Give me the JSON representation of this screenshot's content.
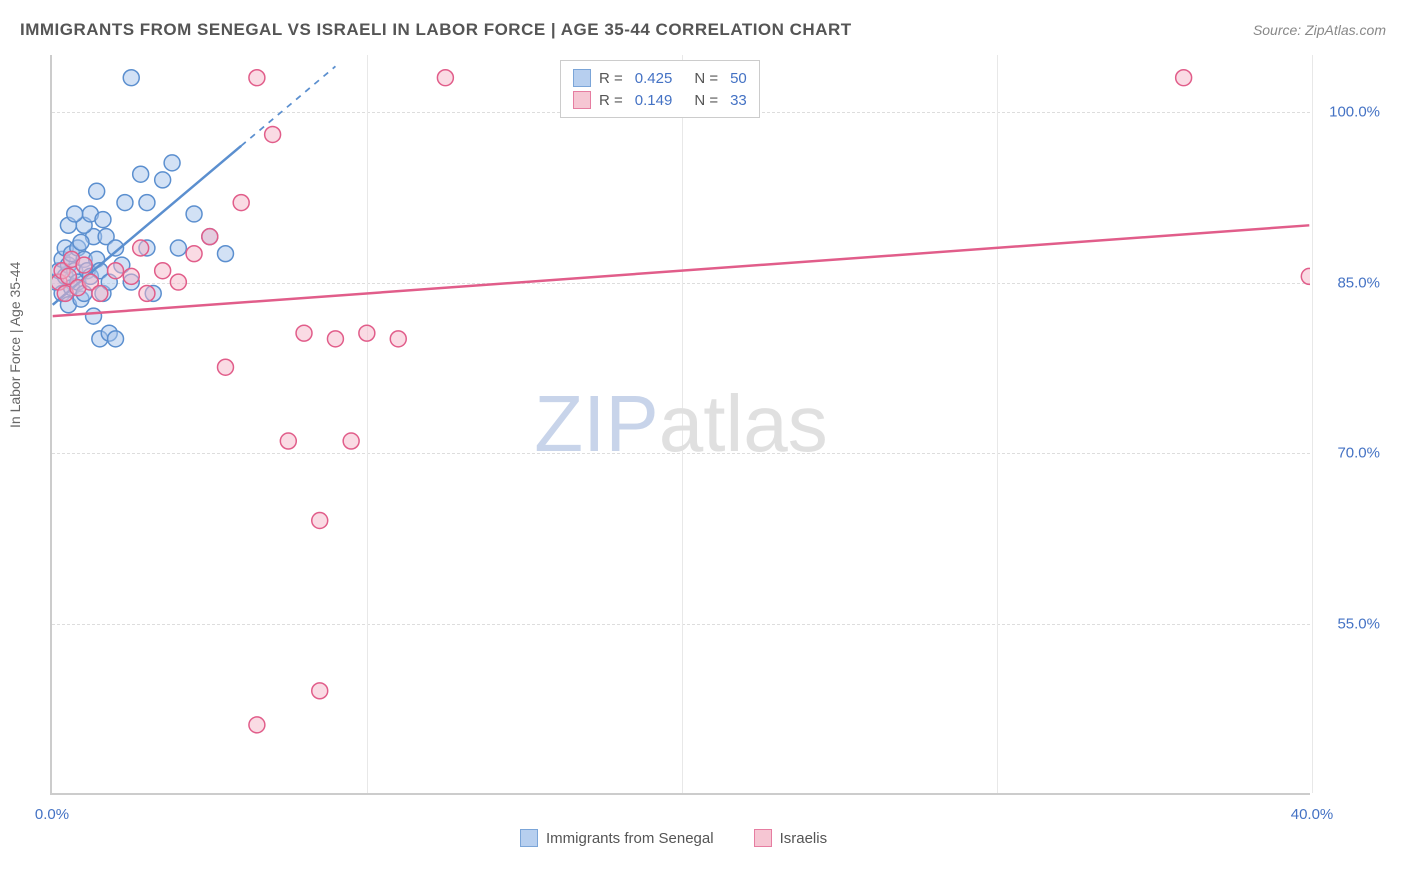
{
  "title": "IMMIGRANTS FROM SENEGAL VS ISRAELI IN LABOR FORCE | AGE 35-44 CORRELATION CHART",
  "source": "Source: ZipAtlas.com",
  "watermark": {
    "part1": "ZIP",
    "part2": "atlas"
  },
  "chart": {
    "type": "scatter",
    "y_axis_label": "In Labor Force | Age 35-44",
    "xlim": [
      0,
      40
    ],
    "ylim": [
      40,
      105
    ],
    "xticks": [
      {
        "v": 0,
        "label": "0.0%"
      },
      {
        "v": 20,
        "label": ""
      },
      {
        "v": 40,
        "label": "40.0%"
      }
    ],
    "xgrid": [
      10,
      20,
      30,
      40
    ],
    "yticks": [
      {
        "v": 55,
        "label": "55.0%"
      },
      {
        "v": 70,
        "label": "70.0%"
      },
      {
        "v": 85,
        "label": "85.0%"
      },
      {
        "v": 100,
        "label": "100.0%"
      }
    ],
    "background_color": "#ffffff",
    "grid_color": "#dddddd",
    "axis_color": "#cccccc",
    "tick_label_color": "#4472c4",
    "marker_radius": 8,
    "marker_stroke_width": 1.5,
    "series": [
      {
        "name": "Immigrants from Senegal",
        "color_fill": "#a6c4ec",
        "color_stroke": "#5b8fcf",
        "fill_opacity": 0.5,
        "R": "0.425",
        "N": "50",
        "trend": {
          "x1": 0,
          "y1": 83,
          "x2": 9,
          "y2": 104,
          "solid_until_x": 6,
          "width": 2.5
        },
        "points": [
          [
            0.1,
            85
          ],
          [
            0.2,
            86
          ],
          [
            0.3,
            84
          ],
          [
            0.3,
            87
          ],
          [
            0.4,
            85.5
          ],
          [
            0.4,
            88
          ],
          [
            0.5,
            83
          ],
          [
            0.5,
            86.5
          ],
          [
            0.6,
            84.5
          ],
          [
            0.6,
            87.5
          ],
          [
            0.7,
            86
          ],
          [
            0.8,
            85
          ],
          [
            0.8,
            88
          ],
          [
            0.9,
            83.5
          ],
          [
            1.0,
            84
          ],
          [
            1.0,
            87
          ],
          [
            1.1,
            86
          ],
          [
            1.2,
            85.5
          ],
          [
            1.3,
            89
          ],
          [
            1.3,
            82
          ],
          [
            1.4,
            87
          ],
          [
            1.5,
            80
          ],
          [
            1.5,
            86
          ],
          [
            1.6,
            84
          ],
          [
            1.7,
            89
          ],
          [
            1.8,
            80.5
          ],
          [
            1.8,
            85
          ],
          [
            2.0,
            88
          ],
          [
            2.0,
            80
          ],
          [
            2.2,
            86.5
          ],
          [
            2.5,
            103
          ],
          [
            2.5,
            85
          ],
          [
            3.0,
            88
          ],
          [
            3.0,
            92
          ],
          [
            3.2,
            84
          ],
          [
            3.5,
            94
          ],
          [
            4.0,
            88
          ],
          [
            4.5,
            91
          ],
          [
            5.0,
            89
          ],
          [
            5.5,
            87.5
          ],
          [
            1.0,
            90
          ],
          [
            1.2,
            91
          ],
          [
            1.4,
            93
          ],
          [
            0.5,
            90
          ],
          [
            0.7,
            91
          ],
          [
            2.8,
            94.5
          ],
          [
            3.8,
            95.5
          ],
          [
            0.9,
            88.5
          ],
          [
            1.6,
            90.5
          ],
          [
            2.3,
            92
          ]
        ]
      },
      {
        "name": "Israelis",
        "color_fill": "#f5b8c9",
        "color_stroke": "#e15d8a",
        "fill_opacity": 0.5,
        "R": "0.149",
        "N": "33",
        "trend": {
          "x1": 0,
          "y1": 82,
          "x2": 40,
          "y2": 90,
          "solid_until_x": 40,
          "width": 2.5
        },
        "points": [
          [
            0.2,
            85
          ],
          [
            0.3,
            86
          ],
          [
            0.4,
            84
          ],
          [
            0.5,
            85.5
          ],
          [
            0.6,
            87
          ],
          [
            0.8,
            84.5
          ],
          [
            1.0,
            86.5
          ],
          [
            1.2,
            85
          ],
          [
            1.5,
            84
          ],
          [
            2.0,
            86
          ],
          [
            2.5,
            85.5
          ],
          [
            3.0,
            84
          ],
          [
            3.5,
            86
          ],
          [
            4.0,
            85
          ],
          [
            5.0,
            89
          ],
          [
            5.5,
            77.5
          ],
          [
            6.0,
            92
          ],
          [
            6.5,
            103
          ],
          [
            7.0,
            98
          ],
          [
            7.5,
            71
          ],
          [
            8.0,
            80.5
          ],
          [
            8.5,
            64
          ],
          [
            9.0,
            80
          ],
          [
            9.5,
            71
          ],
          [
            10,
            80.5
          ],
          [
            11,
            80
          ],
          [
            12.5,
            103
          ],
          [
            6.5,
            46
          ],
          [
            8.5,
            49
          ],
          [
            36,
            103
          ],
          [
            40,
            85.5
          ],
          [
            4.5,
            87.5
          ],
          [
            2.8,
            88
          ]
        ]
      }
    ],
    "legend_bottom": [
      {
        "label": "Immigrants from Senegal",
        "fill": "#a6c4ec",
        "stroke": "#5b8fcf"
      },
      {
        "label": "Israelis",
        "fill": "#f5b8c9",
        "stroke": "#e15d8a"
      }
    ]
  }
}
